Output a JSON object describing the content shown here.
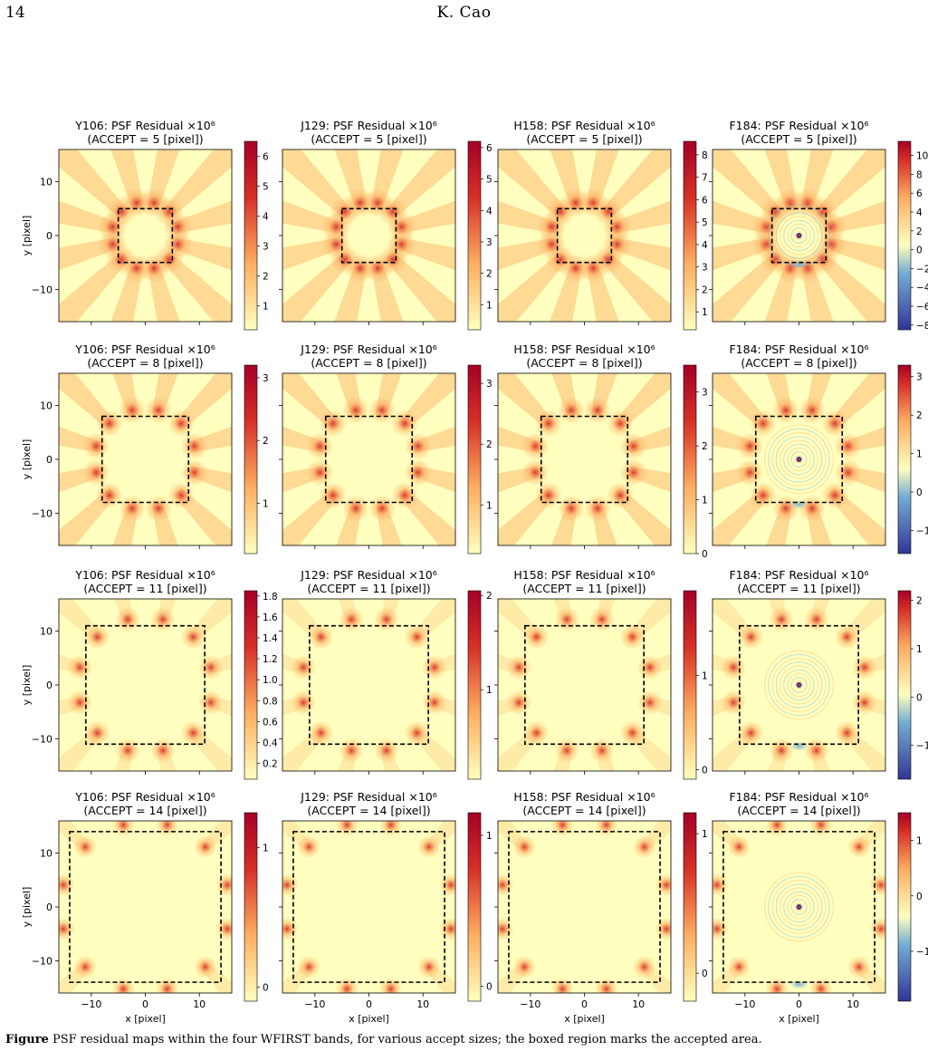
{
  "header": {
    "page_number": "14",
    "author": "K. Cao"
  },
  "colorscale": {
    "low": "#313695",
    "mid_low": "#74add1",
    "neutral": "#ffffbf",
    "mid_high": "#fdae61",
    "high": "#d73027",
    "max": "#a50026"
  },
  "caption": {
    "label": "Figure",
    "text": "PSF residual maps within the four WFIRST bands, for various accept sizes; the boxed region marks the accepted area."
  },
  "axes": {
    "xlabel": "x [pixel]",
    "ylabel": "y [pixel]",
    "xticks": [
      "−10",
      "0",
      "10"
    ],
    "yticks": [
      "10",
      "0",
      "−10"
    ],
    "range": [
      -16,
      16
    ]
  },
  "chart_data": [
    {
      "type": "heatmap",
      "title": "Y106: PSF Residual ×10⁶",
      "subtitle": "(ACCEPT = 5 [pixel])",
      "band": "Y106",
      "accept": 5,
      "colorbar_ticks": [
        "1",
        "2",
        "3",
        "4",
        "5",
        "6"
      ],
      "vmin": 0.2,
      "vmax": 6.5,
      "diverging": false
    },
    {
      "type": "heatmap",
      "title": "J129: PSF Residual ×10⁶",
      "subtitle": "(ACCEPT = 5 [pixel])",
      "band": "J129",
      "accept": 5,
      "colorbar_ticks": [
        "1",
        "2",
        "3",
        "4",
        "5",
        "6"
      ],
      "vmin": 0.2,
      "vmax": 6.2,
      "diverging": false
    },
    {
      "type": "heatmap",
      "title": "H158: PSF Residual ×10⁶",
      "subtitle": "(ACCEPT = 5 [pixel])",
      "band": "H158",
      "accept": 5,
      "colorbar_ticks": [
        "1",
        "2",
        "3",
        "4",
        "5",
        "6",
        "7",
        "8"
      ],
      "vmin": 0.2,
      "vmax": 8.6,
      "diverging": false
    },
    {
      "type": "heatmap",
      "title": "F184: PSF Residual ×10⁶",
      "subtitle": "(ACCEPT = 5 [pixel])",
      "band": "F184",
      "accept": 5,
      "colorbar_ticks": [
        "10",
        "8",
        "6",
        "4",
        "2",
        "0",
        "−2",
        "−4",
        "−6",
        "−8"
      ],
      "vmin": -8.5,
      "vmax": 11.5,
      "diverging": true
    },
    {
      "type": "heatmap",
      "title": "Y106: PSF Residual ×10⁶",
      "subtitle": "(ACCEPT = 8 [pixel])",
      "band": "Y106",
      "accept": 8,
      "colorbar_ticks": [
        "1",
        "2",
        "3"
      ],
      "vmin": 0.2,
      "vmax": 3.2,
      "diverging": false
    },
    {
      "type": "heatmap",
      "title": "J129: PSF Residual ×10⁶",
      "subtitle": "(ACCEPT = 8 [pixel])",
      "band": "J129",
      "accept": 8,
      "colorbar_ticks": [
        "1",
        "2",
        "3"
      ],
      "vmin": 0.2,
      "vmax": 3.3,
      "diverging": false
    },
    {
      "type": "heatmap",
      "title": "H158: PSF Residual ×10⁶",
      "subtitle": "(ACCEPT = 8 [pixel])",
      "band": "H158",
      "accept": 8,
      "colorbar_ticks": [
        "0",
        "1",
        "2",
        "3"
      ],
      "vmin": 0,
      "vmax": 3.5,
      "diverging": false
    },
    {
      "type": "heatmap",
      "title": "F184: PSF Residual ×10⁶",
      "subtitle": "(ACCEPT = 8 [pixel])",
      "band": "F184",
      "accept": 8,
      "colorbar_ticks": [
        "3",
        "2",
        "1",
        "0",
        "−1"
      ],
      "vmin": -1.6,
      "vmax": 3.3,
      "diverging": true
    },
    {
      "type": "heatmap",
      "title": "Y106: PSF Residual ×10⁶",
      "subtitle": "(ACCEPT = 11 [pixel])",
      "band": "Y106",
      "accept": 11,
      "colorbar_ticks": [
        "1.8",
        "1.6",
        "1.4",
        "1.2",
        "1.0",
        "0.8",
        "0.6",
        "0.4",
        "0.2"
      ],
      "vmin": 0.05,
      "vmax": 1.85,
      "diverging": false
    },
    {
      "type": "heatmap",
      "title": "J129: PSF Residual ×10⁶",
      "subtitle": "(ACCEPT = 11 [pixel])",
      "band": "J129",
      "accept": 11,
      "colorbar_ticks": [
        "2",
        "1"
      ],
      "vmin": 0.05,
      "vmax": 2.05,
      "diverging": false
    },
    {
      "type": "heatmap",
      "title": "H158: PSF Residual ×10⁶",
      "subtitle": "(ACCEPT = 11 [pixel])",
      "band": "H158",
      "accept": 11,
      "colorbar_ticks": [
        "1",
        "0"
      ],
      "vmin": -0.1,
      "vmax": 1.9,
      "diverging": false
    },
    {
      "type": "heatmap",
      "title": "F184: PSF Residual ×10⁶",
      "subtitle": "(ACCEPT = 11 [pixel])",
      "band": "F184",
      "accept": 11,
      "colorbar_ticks": [
        "2",
        "1",
        "0",
        "−1"
      ],
      "vmin": -1.7,
      "vmax": 2.2,
      "diverging": true
    },
    {
      "type": "heatmap",
      "title": "Y106: PSF Residual ×10⁶",
      "subtitle": "(ACCEPT = 14 [pixel])",
      "band": "Y106",
      "accept": 14,
      "colorbar_ticks": [
        "1",
        "0"
      ],
      "vmin": -0.1,
      "vmax": 1.25,
      "diverging": false
    },
    {
      "type": "heatmap",
      "title": "J129: PSF Residual ×10⁶",
      "subtitle": "(ACCEPT = 14 [pixel])",
      "band": "J129",
      "accept": 14,
      "colorbar_ticks": [
        "1",
        "0"
      ],
      "vmin": -0.1,
      "vmax": 1.15,
      "diverging": false
    },
    {
      "type": "heatmap",
      "title": "H158: PSF Residual ×10⁶",
      "subtitle": "(ACCEPT = 14 [pixel])",
      "band": "H158",
      "accept": 14,
      "colorbar_ticks": [
        "1",
        "0"
      ],
      "vmin": -0.2,
      "vmax": 1.15,
      "diverging": false
    },
    {
      "type": "heatmap",
      "title": "F184: PSF Residual ×10⁶",
      "subtitle": "(ACCEPT = 14 [pixel])",
      "band": "F184",
      "accept": 14,
      "colorbar_ticks": [
        "1",
        "0",
        "−1"
      ],
      "vmin": -1.9,
      "vmax": 1.5,
      "diverging": true
    }
  ]
}
